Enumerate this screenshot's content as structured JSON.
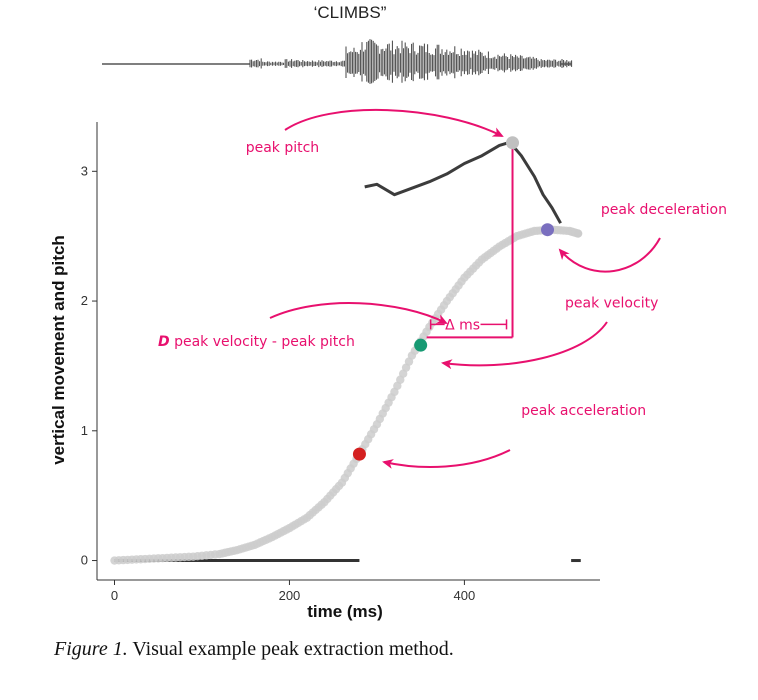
{
  "figure": {
    "word": "‘CLIMBS”",
    "caption_label": "Figure 1.",
    "caption_text": " Visual example peak extraction method."
  },
  "chart_data": {
    "type": "line",
    "xlabel": "time (ms)",
    "ylabel": "vertical movement and pitch",
    "xlim": [
      -20,
      555
    ],
    "ylim": [
      -0.15,
      3.38
    ],
    "x_ticks": [
      0,
      200,
      400
    ],
    "x_tick_labels": [
      "0",
      "200",
      "400"
    ],
    "y_ticks": [
      0,
      1,
      2,
      3
    ],
    "y_tick_labels": [
      "0",
      "1",
      "2",
      "3"
    ],
    "grid": false,
    "movement_series": {
      "x": [
        0,
        30,
        60,
        90,
        120,
        140,
        160,
        180,
        200,
        220,
        240,
        260,
        280,
        300,
        320,
        340,
        360,
        380,
        400,
        420,
        440,
        460,
        480,
        500,
        520,
        530
      ],
      "y": [
        0.0,
        0.01,
        0.02,
        0.03,
        0.05,
        0.08,
        0.12,
        0.18,
        0.25,
        0.33,
        0.45,
        0.6,
        0.82,
        1.05,
        1.3,
        1.58,
        1.8,
        2.0,
        2.18,
        2.32,
        2.42,
        2.5,
        2.54,
        2.55,
        2.54,
        2.52
      ],
      "color": "#cccccc"
    },
    "pitch_series": {
      "x": [
        286,
        300,
        320,
        340,
        360,
        380,
        400,
        420,
        440,
        450,
        455,
        465,
        480,
        490,
        500,
        510
      ],
      "y": [
        2.88,
        2.9,
        2.82,
        2.87,
        2.92,
        2.98,
        3.06,
        3.12,
        3.2,
        3.22,
        3.2,
        3.12,
        2.96,
        2.82,
        2.72,
        2.6
      ],
      "color": "#3c3c3c"
    },
    "baseline_segments": [
      {
        "x": [
          0,
          280
        ],
        "y": [
          0,
          0
        ]
      },
      {
        "x": [
          522,
          533
        ],
        "y": [
          0,
          0
        ]
      }
    ],
    "peak_points": [
      {
        "name": "peak pitch",
        "x": 455,
        "y": 3.22,
        "color": "#c0c0c0",
        "label_x": 150,
        "label_y": 3.15,
        "label_anchor": "start"
      },
      {
        "name": "peak deceleration",
        "x": 495,
        "y": 2.55,
        "color": "#7a6fbf",
        "label_x": 556,
        "label_y": 2.67,
        "label_anchor": "start"
      },
      {
        "name": "peak velocity",
        "x": 350,
        "y": 1.66,
        "color": "#179a73",
        "label_x": 515,
        "label_y": 1.95,
        "label_anchor": "start"
      },
      {
        "name": "peak acceleration",
        "x": 280,
        "y": 0.82,
        "color": "#d42020",
        "label_x": 465,
        "label_y": 1.12,
        "label_anchor": "start"
      }
    ],
    "delta_label_prefix": "D",
    "delta_label_rest": " peak velocity - peak pitch",
    "delta_ms_label": "Δ ms",
    "annotation_color": "#e8106e"
  }
}
